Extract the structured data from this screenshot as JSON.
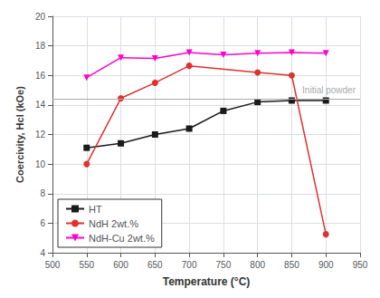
{
  "chart_data": {
    "type": "line",
    "xlabel": "Temperature (°C)",
    "ylabel": "Coercivity, Hcl (kOe)",
    "xlim": [
      500,
      950
    ],
    "ylim": [
      4,
      20
    ],
    "xticks": [
      500,
      550,
      600,
      650,
      700,
      750,
      800,
      850,
      900,
      950
    ],
    "yticks": [
      4,
      6,
      8,
      10,
      12,
      14,
      16,
      18,
      20
    ],
    "grid": true,
    "legend": "lower left",
    "series": [
      {
        "name": "HT",
        "color": "#1a1a1a",
        "marker": "square",
        "x": [
          550,
          600,
          650,
          700,
          750,
          800,
          850,
          900
        ],
        "values": [
          11.1,
          11.4,
          12.0,
          12.4,
          13.6,
          14.2,
          14.3,
          14.3
        ]
      },
      {
        "name": "NdH 2wt.%",
        "color": "#e03030",
        "marker": "circle",
        "x": [
          550,
          600,
          650,
          700,
          800,
          850,
          900
        ],
        "values": [
          10.0,
          14.45,
          15.5,
          16.65,
          16.2,
          16.0,
          5.25
        ]
      },
      {
        "name": "NdH-Cu 2wt.%",
        "color": "#ff00cc",
        "marker": "triangle_down",
        "x": [
          550,
          600,
          650,
          700,
          750,
          800,
          850,
          900
        ],
        "values": [
          15.85,
          17.2,
          17.15,
          17.55,
          17.4,
          17.5,
          17.55,
          17.5
        ]
      }
    ],
    "reference_lines": [
      {
        "y": 14.4,
        "label": "Initial powder",
        "color": "#aaaaaa"
      }
    ]
  }
}
